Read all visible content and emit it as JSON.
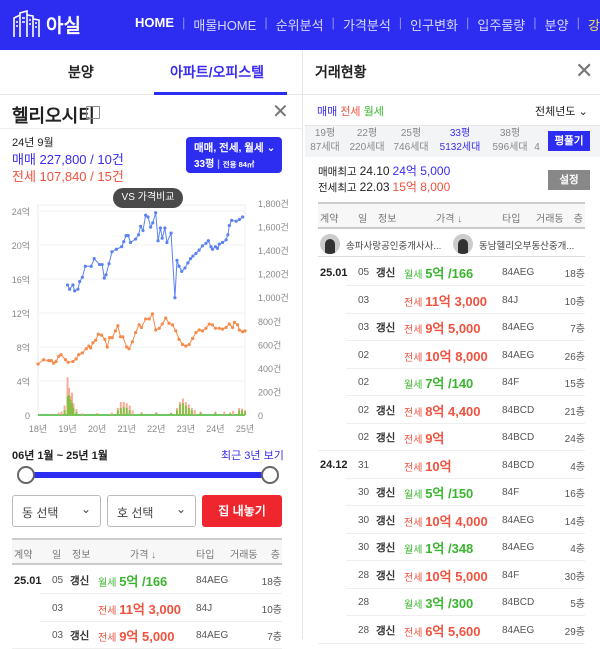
{
  "header": {
    "logo_text": "아실",
    "nav": [
      "HOME",
      "매물HOME",
      "순위분석",
      "가격분석",
      "인구변화",
      "입주물량",
      "분양",
      "강의"
    ]
  },
  "left": {
    "tabs": [
      "분양",
      "아파트/오피스텔"
    ],
    "title": "헬리오시티",
    "summary": {
      "month": "24년 9월",
      "sale_label": "매매",
      "sale_value": "227,800 / 10건",
      "jeonse_label": "전세",
      "jeonse_value": "107,840 / 15건"
    },
    "filter": {
      "types": "매매, 전세, 월세",
      "size": "33평",
      "area": "전용 84㎡"
    },
    "compare_button": "VS 가격비교",
    "range_text": "06년 1월 ~ 25년 1월",
    "recent_link": "최근 3년 보기",
    "range_slider": {
      "start_fraction": 0,
      "end_fraction": 1
    },
    "dong_select": "동 선택",
    "ho_select": "호 선택",
    "list_button": "집 내놓기",
    "table_headers": [
      "계약",
      "일",
      "정보",
      "가격 ↓",
      "타입",
      "거래동",
      "층"
    ],
    "rows": [
      {
        "month": "25.01",
        "day": "05",
        "info": "갱신",
        "kind": "월세",
        "price": "5억 /166",
        "type": "84AEG",
        "floor": "18층"
      },
      {
        "month": "",
        "day": "03",
        "info": "",
        "kind": "전세",
        "price": "11억 3,000",
        "type": "84J",
        "floor": "10층"
      },
      {
        "month": "",
        "day": "03",
        "info": "갱신",
        "kind": "전세",
        "price": "9억 5,000",
        "type": "84AEG",
        "floor": "7층"
      }
    ]
  },
  "right": {
    "title": "거래현황",
    "filters": [
      "매매",
      "전세",
      "월세"
    ],
    "year_select": "전체년도",
    "sizes": [
      {
        "p": "19평",
        "h": "87세대"
      },
      {
        "p": "22평",
        "h": "220세대"
      },
      {
        "p": "25평",
        "h": "746세대"
      },
      {
        "p": "33평",
        "h": "5132세대"
      },
      {
        "p": "38평",
        "h": "596세대"
      },
      {
        "p": "",
        "h": "4"
      }
    ],
    "expand_button": "평풀기",
    "max_sale_label": "매매최고",
    "max_sale_date": "24.10",
    "max_sale_price": "24억 5,000",
    "max_jeonse_label": "전세최고",
    "max_jeonse_date": "22.03",
    "max_jeonse_price": "15억 8,000",
    "settings_button": "설정",
    "table_headers": [
      "계약",
      "일",
      "정보",
      "가격 ↓",
      "타입",
      "거래동",
      "층"
    ],
    "agents": [
      "송파사랑공인중개사사...",
      "동남헬리오부동산중개..."
    ],
    "rows": [
      {
        "month": "25.01",
        "day": "05",
        "info": "갱신",
        "kind": "월세",
        "price": "5억 /166",
        "type": "84AEG",
        "floor": "18층"
      },
      {
        "month": "",
        "day": "03",
        "info": "",
        "kind": "전세",
        "price": "11억 3,000",
        "type": "84J",
        "floor": "10층"
      },
      {
        "month": "",
        "day": "03",
        "info": "갱신",
        "kind": "전세",
        "price": "9억 5,000",
        "type": "84AEG",
        "floor": "7층"
      },
      {
        "month": "",
        "day": "02",
        "info": "",
        "kind": "전세",
        "price": "10억 8,000",
        "type": "84AEG",
        "floor": "26층"
      },
      {
        "month": "",
        "day": "02",
        "info": "",
        "kind": "월세",
        "price": "7억 /140",
        "type": "84F",
        "floor": "15층"
      },
      {
        "month": "",
        "day": "02",
        "info": "갱신",
        "kind": "전세",
        "price": "8억 4,400",
        "type": "84BCD",
        "floor": "21층"
      },
      {
        "month": "",
        "day": "02",
        "info": "갱신",
        "kind": "전세",
        "price": "9억",
        "type": "84BCD",
        "floor": "24층"
      },
      {
        "month": "24.12",
        "day": "31",
        "info": "",
        "kind": "전세",
        "price": "10억",
        "type": "84BCD",
        "floor": "4층"
      },
      {
        "month": "",
        "day": "30",
        "info": "갱신",
        "kind": "월세",
        "price": "5억 /150",
        "type": "84F",
        "floor": "16층"
      },
      {
        "month": "",
        "day": "30",
        "info": "갱신",
        "kind": "전세",
        "price": "10억 4,000",
        "type": "84AEG",
        "floor": "14층"
      },
      {
        "month": "",
        "day": "30",
        "info": "갱신",
        "kind": "월세",
        "price": "1억 /348",
        "type": "84AEG",
        "floor": "4층"
      },
      {
        "month": "",
        "day": "28",
        "info": "갱신",
        "kind": "전세",
        "price": "10억 5,000",
        "type": "84F",
        "floor": "30층"
      },
      {
        "month": "",
        "day": "28",
        "info": "",
        "kind": "월세",
        "price": "3억 /300",
        "type": "84BCD",
        "floor": "5층"
      },
      {
        "month": "",
        "day": "28",
        "info": "갱신",
        "kind": "전세",
        "price": "6억 5,600",
        "type": "84AEG",
        "floor": "29층"
      }
    ]
  },
  "colors": {
    "brand": "#2d2df2",
    "sale": "#3a2cf0",
    "jeonse": "#f0523e",
    "monthly": "#3bb52f",
    "sale_line": "#5b82f0",
    "jeonse_line": "#f58a4a",
    "button_red": "#f0262e"
  },
  "chart_data": {
    "type": "line",
    "x_ticks": [
      "18년",
      "19년",
      "20년",
      "21년",
      "22년",
      "23년",
      "24년",
      "25년"
    ],
    "xlim": [
      18,
      25
    ],
    "y_left_ticks": [
      "0",
      "4억",
      "8억",
      "12억",
      "16억",
      "20억",
      "24억"
    ],
    "ylim_left": [
      0,
      24
    ],
    "y_right_ticks": [
      "0",
      "200건",
      "400건",
      "600건",
      "800건",
      "1,000건",
      "1,200건",
      "1,400건",
      "1,600건",
      "1,800건"
    ],
    "ylim_right": [
      0,
      1800
    ],
    "series": [
      {
        "kind": "sale",
        "axis": "left",
        "points": [
          [
            19.0,
            15.3
          ],
          [
            19.07,
            14.8
          ],
          [
            19.18,
            15.3
          ],
          [
            19.24,
            14.6
          ],
          [
            19.35,
            14.8
          ],
          [
            19.41,
            15.7
          ],
          [
            19.5,
            16.2
          ],
          [
            19.6,
            17.5
          ],
          [
            19.8,
            17.5
          ],
          [
            19.9,
            18.4
          ],
          [
            20.08,
            17.7
          ],
          [
            20.17,
            17.7
          ],
          [
            20.24,
            16.1
          ],
          [
            20.3,
            16.5
          ],
          [
            20.4,
            17.8
          ],
          [
            20.5,
            19.2
          ],
          [
            20.65,
            19.5
          ],
          [
            20.83,
            19.8
          ],
          [
            20.9,
            20.4
          ],
          [
            20.98,
            21.1
          ],
          [
            21.05,
            21.1
          ],
          [
            21.13,
            20.3
          ],
          [
            21.3,
            20.7
          ],
          [
            21.4,
            21.2
          ],
          [
            21.47,
            22.2
          ],
          [
            21.55,
            21.7
          ],
          [
            21.64,
            23.5
          ],
          [
            21.72,
            23.3
          ],
          [
            21.81,
            22.1
          ],
          [
            21.88,
            22.6
          ],
          [
            21.98,
            23.8
          ],
          [
            22.06,
            20.5
          ],
          [
            22.14,
            22.0
          ],
          [
            22.2,
            20.8
          ],
          [
            22.29,
            22.0
          ],
          [
            22.36,
            20.3
          ],
          [
            22.5,
            21.4
          ],
          [
            22.63,
            13.8
          ],
          [
            22.7,
            18.2
          ],
          [
            22.77,
            17.5
          ],
          [
            22.86,
            16.9
          ],
          [
            22.97,
            17.3
          ],
          [
            23.07,
            17.9
          ],
          [
            23.16,
            18.4
          ],
          [
            23.24,
            18.7
          ],
          [
            23.34,
            19.0
          ],
          [
            23.45,
            19.4
          ],
          [
            23.56,
            19.9
          ],
          [
            23.68,
            20.2
          ],
          [
            23.76,
            20.5
          ],
          [
            23.85,
            19.8
          ],
          [
            23.9,
            19.5
          ],
          [
            24.0,
            19.8
          ],
          [
            24.07,
            19.6
          ],
          [
            24.13,
            20.1
          ],
          [
            24.24,
            20.3
          ],
          [
            24.36,
            20.6
          ],
          [
            24.42,
            21.2
          ],
          [
            24.47,
            22.3
          ],
          [
            24.55,
            22.9
          ],
          [
            24.7,
            22.8
          ],
          [
            24.81,
            23.0
          ],
          [
            24.92,
            23.3
          ]
        ]
      },
      {
        "kind": "jeonse",
        "axis": "left",
        "points": [
          [
            18.0,
            6.0
          ],
          [
            18.19,
            6.5
          ],
          [
            18.36,
            6.4
          ],
          [
            18.45,
            6.4
          ],
          [
            18.53,
            6.1
          ],
          [
            18.61,
            6.3
          ],
          [
            18.7,
            6.9
          ],
          [
            18.78,
            7.1
          ],
          [
            18.93,
            6.5
          ],
          [
            19.02,
            6.2
          ],
          [
            19.18,
            6.3
          ],
          [
            19.29,
            6.6
          ],
          [
            19.38,
            7.1
          ],
          [
            19.5,
            7.3
          ],
          [
            19.63,
            7.8
          ],
          [
            19.72,
            8.1
          ],
          [
            19.78,
            7.9
          ],
          [
            19.86,
            8.5
          ],
          [
            19.95,
            8.8
          ],
          [
            20.04,
            9.5
          ],
          [
            20.15,
            9.4
          ],
          [
            20.26,
            8.9
          ],
          [
            20.34,
            8.0
          ],
          [
            20.42,
            9.1
          ],
          [
            20.51,
            9.1
          ],
          [
            20.62,
            9.9
          ],
          [
            20.7,
            10.5
          ],
          [
            20.79,
            9.2
          ],
          [
            20.87,
            9.2
          ],
          [
            21.0,
            8.0
          ],
          [
            21.08,
            7.8
          ],
          [
            21.19,
            8.6
          ],
          [
            21.3,
            9.7
          ],
          [
            21.42,
            10.6
          ],
          [
            21.5,
            10.3
          ],
          [
            21.64,
            11.3
          ],
          [
            21.76,
            11.3
          ],
          [
            21.87,
            11.9
          ],
          [
            21.98,
            10.0
          ],
          [
            22.1,
            10.2
          ],
          [
            22.2,
            10.7
          ],
          [
            22.32,
            11.4
          ],
          [
            22.43,
            10.8
          ],
          [
            22.55,
            10.6
          ],
          [
            22.66,
            9.9
          ],
          [
            22.77,
            8.9
          ],
          [
            22.89,
            8.3
          ],
          [
            23.0,
            8.1
          ],
          [
            23.11,
            8.3
          ],
          [
            23.23,
            9.0
          ],
          [
            23.34,
            9.7
          ],
          [
            23.45,
            10.0
          ],
          [
            23.56,
            9.9
          ],
          [
            23.68,
            10.2
          ],
          [
            23.79,
            10.7
          ],
          [
            23.9,
            10.6
          ],
          [
            24.0,
            10.2
          ],
          [
            24.13,
            10.2
          ],
          [
            24.24,
            10.1
          ],
          [
            24.36,
            10.3
          ],
          [
            24.47,
            10.7
          ],
          [
            24.58,
            10.3
          ],
          [
            24.64,
            10.9
          ],
          [
            24.75,
            10.6
          ],
          [
            24.81,
            10.0
          ],
          [
            24.92,
            9.8
          ],
          [
            25.0,
            9.9
          ]
        ]
      }
    ],
    "volume_series": [
      {
        "kind": "jeonse",
        "axis": "right",
        "points": [
          [
            18.5,
            10
          ],
          [
            18.7,
            20
          ],
          [
            18.8,
            30
          ],
          [
            18.9,
            80
          ],
          [
            19.0,
            320
          ],
          [
            19.05,
            230
          ],
          [
            19.1,
            160
          ],
          [
            19.15,
            190
          ],
          [
            19.2,
            100
          ],
          [
            19.3,
            50
          ],
          [
            19.5,
            15
          ],
          [
            20.0,
            15
          ],
          [
            20.5,
            20
          ],
          [
            20.7,
            60
          ],
          [
            20.8,
            110
          ],
          [
            20.9,
            110
          ],
          [
            21.0,
            100
          ],
          [
            21.1,
            80
          ],
          [
            21.2,
            40
          ],
          [
            21.5,
            25
          ],
          [
            22.0,
            25
          ],
          [
            22.5,
            20
          ],
          [
            22.7,
            60
          ],
          [
            22.8,
            110
          ],
          [
            22.9,
            140
          ],
          [
            23.0,
            110
          ],
          [
            23.1,
            90
          ],
          [
            23.2,
            60
          ],
          [
            23.3,
            40
          ],
          [
            23.5,
            30
          ],
          [
            24.0,
            30
          ],
          [
            24.3,
            30
          ],
          [
            24.6,
            35
          ],
          [
            24.8,
            60
          ],
          [
            24.9,
            55
          ],
          [
            25.0,
            40
          ]
        ]
      },
      {
        "kind": "monthly",
        "axis": "right",
        "points": [
          [
            18.9,
            40
          ],
          [
            19.0,
            160
          ],
          [
            19.05,
            170
          ],
          [
            19.1,
            130
          ],
          [
            19.15,
            100
          ],
          [
            19.2,
            60
          ],
          [
            19.3,
            25
          ],
          [
            20.0,
            10
          ],
          [
            20.7,
            40
          ],
          [
            20.8,
            60
          ],
          [
            20.9,
            70
          ],
          [
            21.0,
            60
          ],
          [
            21.1,
            40
          ],
          [
            21.5,
            15
          ],
          [
            22.0,
            15
          ],
          [
            22.5,
            15
          ],
          [
            22.7,
            40
          ],
          [
            22.8,
            90
          ],
          [
            22.9,
            100
          ],
          [
            23.0,
            80
          ],
          [
            23.1,
            60
          ],
          [
            23.2,
            40
          ],
          [
            23.5,
            20
          ],
          [
            24.0,
            20
          ],
          [
            24.5,
            20
          ],
          [
            24.8,
            40
          ],
          [
            24.9,
            40
          ],
          [
            25.0,
            30
          ]
        ]
      }
    ]
  }
}
